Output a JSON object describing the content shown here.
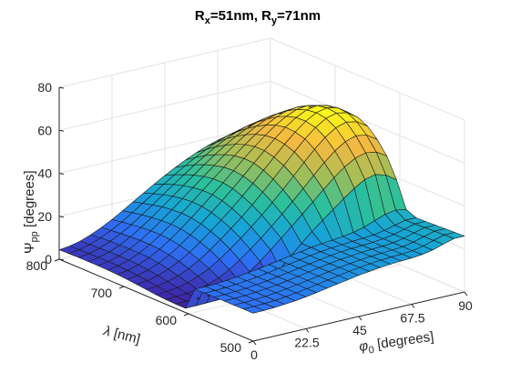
{
  "chart_data": {
    "type": "surface",
    "title": {
      "parts": [
        {
          "text": "R",
          "sub": false
        },
        {
          "text": "x",
          "sub": true
        },
        {
          "text": "=51nm, R",
          "sub": false
        },
        {
          "text": "y",
          "sub": true
        },
        {
          "text": "=71nm",
          "sub": false
        }
      ]
    },
    "xlabel": {
      "symbol": "φ",
      "sub": "0",
      "rest": " [degrees]"
    },
    "ylabel": {
      "symbol": "λ",
      "rest": " [nm]"
    },
    "zlabel": {
      "symbol": "Ψ",
      "sub": "pp",
      "rest": " [degrees]"
    },
    "xlim": [
      0,
      90
    ],
    "ylim": [
      500,
      800
    ],
    "zlim": [
      0,
      80
    ],
    "xticks": [
      0,
      22.5,
      45,
      67.5,
      90
    ],
    "xtick_labels": [
      "0",
      "22.5",
      "45",
      "67.5",
      "90"
    ],
    "yticks": [
      500,
      600,
      700,
      800
    ],
    "ytick_labels": [
      "500",
      "600",
      "700",
      "800"
    ],
    "zticks": [
      0,
      20,
      40,
      60,
      80
    ],
    "ztick_labels": [
      "0",
      "20",
      "40",
      "60",
      "80"
    ],
    "grid": true,
    "colormap": "parula",
    "colormap_stops": [
      "#3e26a8",
      "#2e6ff5",
      "#16a5d6",
      "#2cc09b",
      "#a4be56",
      "#f5b941",
      "#f9fb15"
    ],
    "x": [
      0,
      4.5,
      9,
      13.5,
      18,
      22.5,
      27,
      31.5,
      36,
      40.5,
      45,
      49.5,
      54,
      58.5,
      63,
      67.5,
      72,
      76.5,
      81,
      85.5,
      90
    ],
    "y": [
      500,
      515,
      530,
      545,
      560,
      575,
      590,
      605,
      620,
      635,
      650,
      665,
      680,
      695,
      710,
      725,
      740,
      755,
      770,
      785,
      800
    ],
    "z": [
      [
        13.0,
        13.1,
        13.3,
        13.7,
        14.2,
        14.9,
        15.7,
        16.6,
        17.5,
        18.3,
        19.2,
        19.9,
        20.5,
        20.9,
        21.3,
        21.5,
        22.0,
        23.0,
        24.5,
        26.0,
        26.0
      ],
      [
        13.0,
        13.1,
        13.3,
        13.6,
        14.2,
        14.8,
        15.6,
        16.5,
        17.4,
        18.3,
        19.1,
        19.8,
        20.4,
        20.9,
        21.2,
        21.4,
        21.9,
        22.9,
        24.4,
        25.8,
        25.8
      ],
      [
        12.9,
        13.0,
        13.2,
        13.6,
        14.1,
        14.8,
        15.6,
        16.4,
        17.3,
        18.2,
        19.0,
        19.7,
        20.3,
        20.8,
        21.1,
        21.4,
        21.8,
        22.8,
        24.2,
        25.6,
        25.6
      ],
      [
        12.9,
        13.0,
        13.2,
        13.6,
        14.1,
        14.7,
        15.5,
        16.4,
        17.3,
        18.1,
        18.9,
        19.7,
        20.2,
        20.7,
        21.0,
        21.3,
        21.8,
        22.7,
        24.1,
        25.4,
        25.4
      ],
      [
        12.9,
        12.9,
        13.2,
        13.5,
        14.1,
        14.7,
        15.5,
        16.3,
        17.2,
        18.0,
        18.8,
        19.6,
        20.2,
        20.6,
        20.9,
        21.2,
        21.7,
        22.6,
        23.9,
        25.2,
        25.2
      ],
      [
        12.8,
        12.9,
        13.1,
        13.5,
        14.0,
        14.6,
        15.4,
        16.3,
        17.1,
        18.0,
        18.8,
        19.5,
        20.1,
        20.5,
        20.9,
        21.2,
        21.6,
        22.5,
        23.8,
        25.0,
        25.0
      ],
      [
        12.7,
        12.8,
        13.0,
        13.4,
        13.9,
        14.6,
        15.3,
        16.2,
        17.0,
        17.9,
        18.7,
        19.5,
        20.2,
        20.7,
        21.3,
        22.0,
        23.3,
        25.2,
        27.0,
        27.8,
        26.9
      ],
      [
        2.0,
        2.0,
        2.1,
        2.3,
        2.5,
        2.8,
        3.2,
        4.0,
        6.0,
        10.0,
        14.8,
        19.5,
        23.9,
        28.0,
        31.9,
        35.8,
        39.5,
        42.4,
        43.6,
        42.2,
        38.8
      ],
      [
        2.0,
        2.1,
        2.3,
        2.6,
        3.1,
        4.1,
        6.0,
        9.1,
        12.8,
        16.9,
        21.2,
        25.6,
        30.1,
        34.7,
        39.3,
        43.7,
        47.5,
        50.4,
        51.8,
        51.0,
        48.0
      ],
      [
        2.2,
        2.4,
        2.8,
        3.5,
        4.7,
        6.6,
        9.3,
        12.6,
        16.4,
        20.5,
        24.8,
        29.4,
        34.1,
        39.0,
        44.0,
        48.8,
        53.1,
        56.3,
        57.8,
        57.0,
        53.9
      ],
      [
        2.5,
        2.9,
        3.6,
        4.7,
        6.5,
        9.0,
        12.1,
        15.7,
        19.6,
        23.8,
        28.2,
        32.9,
        37.8,
        42.9,
        48.1,
        53.1,
        57.5,
        60.8,
        62.3,
        61.3,
        58.1
      ],
      [
        3.0,
        3.5,
        4.5,
        6.0,
        8.2,
        11.1,
        14.5,
        18.3,
        22.3,
        26.5,
        31.0,
        35.8,
        40.7,
        45.9,
        51.1,
        56.0,
        60.2,
        63.3,
        64.6,
        63.6,
        60.3
      ],
      [
        3.5,
        4.2,
        5.4,
        7.2,
        9.7,
        12.8,
        16.4,
        20.3,
        24.4,
        28.7,
        33.2,
        38.0,
        42.9,
        47.9,
        52.8,
        57.3,
        61.2,
        64.0,
        65.1,
        64.0,
        60.8
      ],
      [
        4.0,
        4.7,
        6.1,
        8.1,
        10.8,
        14.1,
        17.8,
        21.8,
        26.0,
        30.3,
        34.8,
        39.5,
        44.3,
        49.0,
        53.5,
        57.6,
        61.0,
        63.4,
        64.3,
        63.1,
        60.0
      ],
      [
        4.3,
        5.1,
        6.6,
        8.7,
        11.5,
        14.9,
        18.7,
        22.7,
        26.9,
        31.2,
        35.6,
        40.1,
        44.6,
        49.0,
        53.1,
        56.7,
        59.7,
        61.7,
        62.4,
        61.3,
        58.5
      ],
      [
        4.5,
        5.3,
        6.8,
        9.0,
        11.8,
        15.2,
        19.0,
        23.0,
        27.1,
        31.3,
        35.5,
        39.8,
        44.0,
        48.0,
        51.7,
        54.9,
        57.5,
        59.2,
        59.8,
        58.8,
        56.3
      ],
      [
        4.6,
        5.4,
        6.9,
        9.0,
        11.8,
        15.1,
        18.8,
        22.7,
        26.7,
        30.7,
        34.7,
        38.7,
        42.6,
        46.3,
        49.6,
        52.4,
        54.6,
        56.0,
        56.5,
        55.6,
        53.6
      ],
      [
        4.6,
        5.4,
        6.8,
        8.9,
        11.6,
        14.8,
        18.3,
        22.1,
        25.9,
        29.7,
        33.5,
        37.2,
        40.7,
        44.0,
        47.0,
        49.4,
        51.3,
        52.5,
        52.9,
        52.1,
        50.4
      ],
      [
        4.6,
        5.3,
        6.7,
        8.7,
        11.2,
        14.2,
        17.6,
        21.1,
        24.7,
        28.3,
        31.8,
        35.2,
        38.4,
        41.3,
        43.9,
        46.0,
        47.6,
        48.6,
        48.9,
        48.3,
        46.9
      ],
      [
        4.5,
        5.2,
        6.5,
        8.4,
        10.7,
        13.5,
        16.7,
        20.0,
        23.3,
        26.6,
        29.8,
        32.8,
        35.6,
        38.2,
        40.4,
        42.2,
        43.5,
        44.3,
        44.6,
        44.1,
        43.0
      ],
      [
        4.4,
        5.0,
        6.2,
        8.0,
        10.2,
        12.8,
        15.7,
        18.7,
        21.7,
        24.7,
        27.5,
        30.2,
        32.6,
        34.8,
        36.7,
        38.2,
        39.3,
        40.0,
        40.2,
        39.8,
        38.9
      ]
    ]
  }
}
